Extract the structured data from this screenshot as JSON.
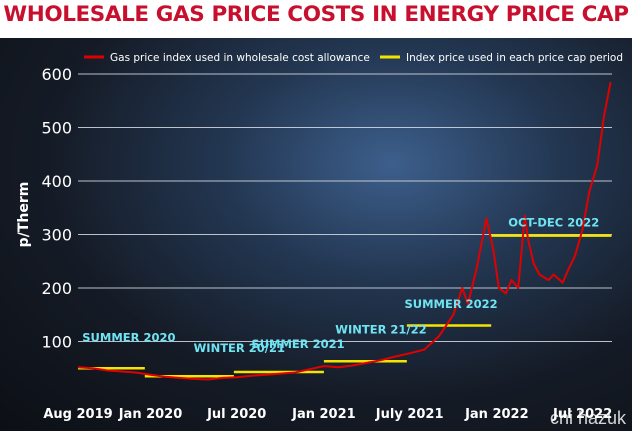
{
  "chart_data": {
    "type": "line",
    "title": "WHOLESALE GAS PRICE COSTS IN ENERGY PRICE CAP",
    "ylabel": "p/Therm",
    "xlabel": "",
    "ylim": [
      0,
      600
    ],
    "yticks": [
      100,
      200,
      300,
      400,
      500,
      600
    ],
    "xlim": [
      "2019-08-01",
      "2022-09-01"
    ],
    "xticks": [
      {
        "label": "Aug 2019",
        "date": "2019-08-01"
      },
      {
        "label": "Jan 2020",
        "date": "2020-01-01"
      },
      {
        "label": "Jul 2020",
        "date": "2020-07-01"
      },
      {
        "label": "Jan 2021",
        "date": "2021-01-01"
      },
      {
        "label": "July 2021",
        "date": "2021-07-01"
      },
      {
        "label": "Jan 2022",
        "date": "2022-01-01"
      },
      {
        "label": "Jul 2022",
        "date": "2022-07-01"
      }
    ],
    "grid": true,
    "legend_placement": "top",
    "series": [
      {
        "name": "Gas price index used in wholesale cost allowance",
        "color": "#e00000",
        "points": [
          [
            "2019-08-01",
            52
          ],
          [
            "2019-09-01",
            50
          ],
          [
            "2019-10-01",
            46
          ],
          [
            "2019-11-01",
            44
          ],
          [
            "2019-12-01",
            42
          ],
          [
            "2020-01-01",
            38
          ],
          [
            "2020-02-01",
            34
          ],
          [
            "2020-03-01",
            32
          ],
          [
            "2020-04-01",
            30
          ],
          [
            "2020-05-01",
            29
          ],
          [
            "2020-06-01",
            32
          ],
          [
            "2020-07-01",
            33
          ],
          [
            "2020-08-01",
            36
          ],
          [
            "2020-09-01",
            38
          ],
          [
            "2020-10-01",
            40
          ],
          [
            "2020-11-01",
            42
          ],
          [
            "2020-12-01",
            48
          ],
          [
            "2021-01-01",
            54
          ],
          [
            "2021-02-01",
            52
          ],
          [
            "2021-03-01",
            55
          ],
          [
            "2021-04-01",
            60
          ],
          [
            "2021-05-01",
            65
          ],
          [
            "2021-06-01",
            72
          ],
          [
            "2021-07-01",
            78
          ],
          [
            "2021-08-01",
            85
          ],
          [
            "2021-09-01",
            110
          ],
          [
            "2021-10-01",
            150
          ],
          [
            "2021-10-20",
            200
          ],
          [
            "2021-11-01",
            170
          ],
          [
            "2021-11-20",
            240
          ],
          [
            "2021-12-10",
            330
          ],
          [
            "2021-12-25",
            270
          ],
          [
            "2022-01-05",
            200
          ],
          [
            "2022-01-20",
            190
          ],
          [
            "2022-02-01",
            215
          ],
          [
            "2022-02-15",
            200
          ],
          [
            "2022-03-01",
            335
          ],
          [
            "2022-03-08",
            290
          ],
          [
            "2022-03-20",
            245
          ],
          [
            "2022-04-01",
            225
          ],
          [
            "2022-04-20",
            215
          ],
          [
            "2022-05-01",
            225
          ],
          [
            "2022-05-20",
            210
          ],
          [
            "2022-06-01",
            235
          ],
          [
            "2022-06-15",
            260
          ],
          [
            "2022-07-01",
            310
          ],
          [
            "2022-07-15",
            380
          ],
          [
            "2022-08-01",
            430
          ],
          [
            "2022-08-15",
            520
          ],
          [
            "2022-08-29",
            585
          ]
        ]
      },
      {
        "name": "Index price used in each price cap period",
        "color": "#f5e400",
        "segments": [
          {
            "start": "2019-08-01",
            "end": "2019-12-20",
            "value": 50
          },
          {
            "start": "2019-12-20",
            "end": "2020-06-25",
            "value": 35
          },
          {
            "start": "2020-06-25",
            "end": "2021-01-01",
            "value": 43
          },
          {
            "start": "2021-01-01",
            "end": "2021-06-25",
            "value": 63
          },
          {
            "start": "2021-06-25",
            "end": "2021-12-20",
            "value": 130
          },
          {
            "start": "2021-12-20",
            "end": "2022-08-31",
            "value": 298
          }
        ]
      }
    ],
    "annotations": [
      {
        "text": "SUMMER 2020",
        "date": "2019-08-10",
        "value": 100
      },
      {
        "text": "WINTER 20/21",
        "date": "2020-04-01",
        "value": 80
      },
      {
        "text": "SUMMER 2021",
        "date": "2020-08-01",
        "value": 88
      },
      {
        "text": "WINTER 21/22",
        "date": "2021-01-25",
        "value": 115
      },
      {
        "text": "SUMMER 2022",
        "date": "2021-06-20",
        "value": 163
      },
      {
        "text": "OCT-DEC 2022",
        "date": "2022-01-25",
        "value": 315
      }
    ]
  },
  "watermark": "chi hazuk"
}
